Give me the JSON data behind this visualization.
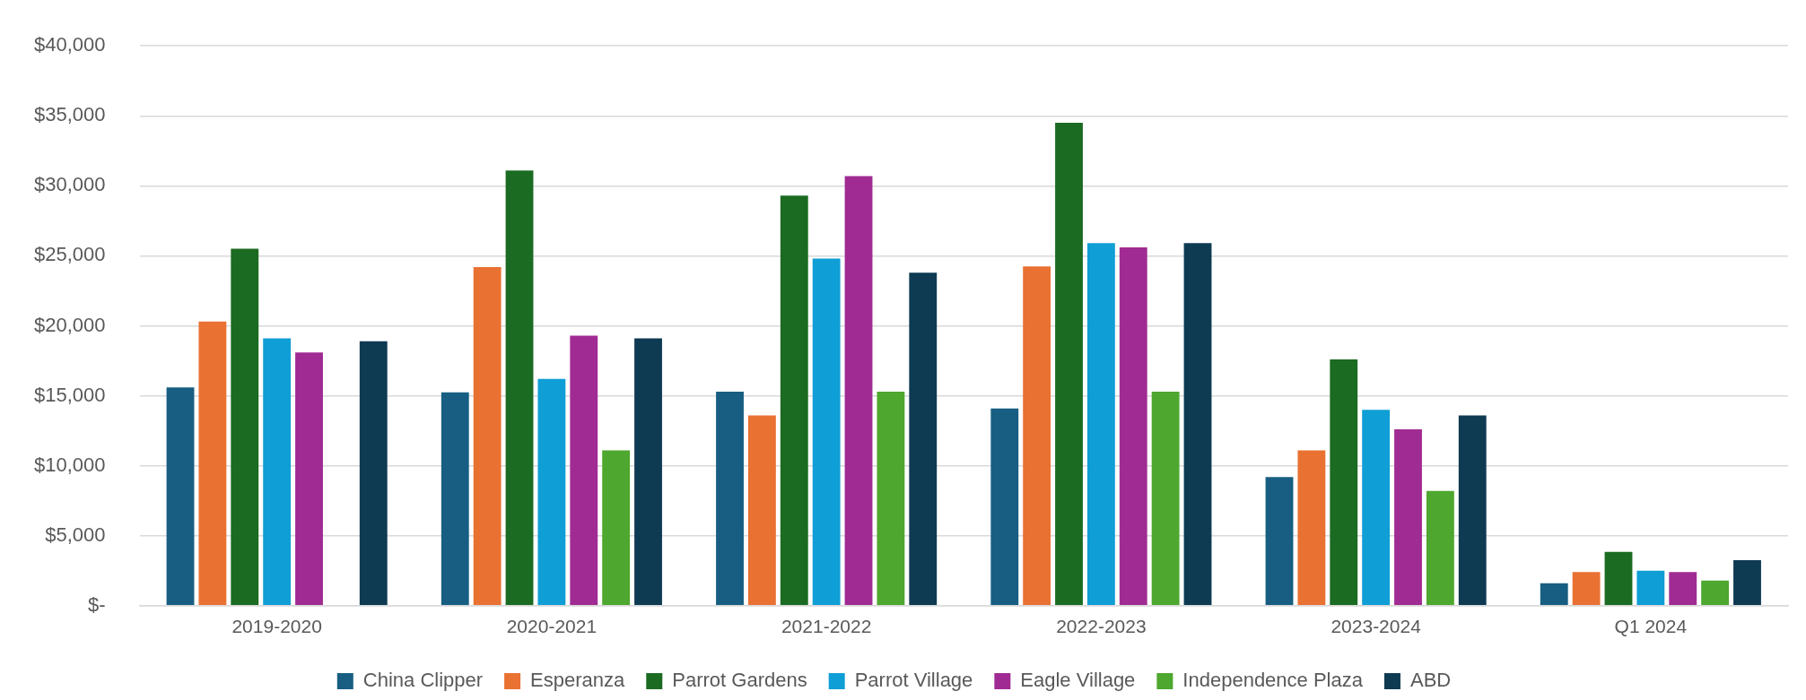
{
  "chart_data": {
    "type": "bar",
    "categories": [
      "2019-2020",
      "2020-2021",
      "2021-2022",
      "2022-2023",
      "2023-2024",
      "Q1 2024"
    ],
    "series": [
      {
        "name": "China Clipper",
        "color": "#175e82",
        "values": [
          15600,
          15250,
          15300,
          14100,
          9200,
          1600
        ]
      },
      {
        "name": "Esperanza",
        "color": "#e97132",
        "values": [
          20300,
          24200,
          13600,
          24250,
          11100,
          2400
        ]
      },
      {
        "name": "Parrot Gardens",
        "color": "#1b6b22",
        "values": [
          25500,
          31100,
          29300,
          34500,
          17600,
          3850
        ]
      },
      {
        "name": "Parrot Village",
        "color": "#0f9ed5",
        "values": [
          19100,
          16200,
          24800,
          25900,
          14000,
          2500
        ]
      },
      {
        "name": "Eagle Village",
        "color": "#a02b93",
        "values": [
          18100,
          19300,
          30700,
          25600,
          12600,
          2400
        ]
      },
      {
        "name": "Independence Plaza",
        "color": "#4ea72e",
        "values": [
          null,
          11100,
          15300,
          15300,
          8200,
          1800
        ]
      },
      {
        "name": "ABD",
        "color": "#0e3a52",
        "values": [
          18900,
          19100,
          23800,
          25900,
          13600,
          3250
        ]
      }
    ],
    "ylim": [
      0,
      40000
    ],
    "yticks": [
      {
        "value": 0,
        "label": "$-"
      },
      {
        "value": 5000,
        "label": "$5,000"
      },
      {
        "value": 10000,
        "label": "$10,000"
      },
      {
        "value": 15000,
        "label": "$15,000"
      },
      {
        "value": 20000,
        "label": "$20,000"
      },
      {
        "value": 25000,
        "label": "$25,000"
      },
      {
        "value": 30000,
        "label": "$30,000"
      },
      {
        "value": 35000,
        "label": "$35,000"
      },
      {
        "value": 40000,
        "label": "$40,000"
      }
    ],
    "grid": "y",
    "legend": "bottom"
  }
}
